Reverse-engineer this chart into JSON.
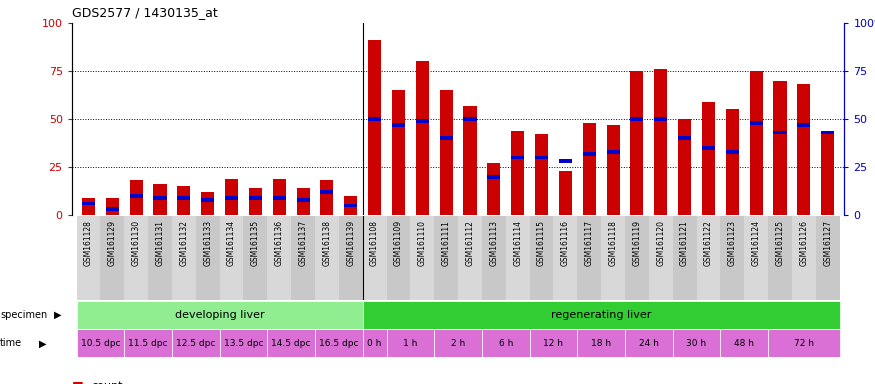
{
  "title": "GDS2577 / 1430135_at",
  "samples": [
    "GSM161128",
    "GSM161129",
    "GSM161130",
    "GSM161131",
    "GSM161132",
    "GSM161133",
    "GSM161134",
    "GSM161135",
    "GSM161136",
    "GSM161137",
    "GSM161138",
    "GSM161139",
    "GSM161108",
    "GSM161109",
    "GSM161110",
    "GSM161111",
    "GSM161112",
    "GSM161113",
    "GSM161114",
    "GSM161115",
    "GSM161116",
    "GSM161117",
    "GSM161118",
    "GSM161119",
    "GSM161120",
    "GSM161121",
    "GSM161122",
    "GSM161123",
    "GSM161124",
    "GSM161125",
    "GSM161126",
    "GSM161127"
  ],
  "count_values": [
    9,
    9,
    18,
    16,
    15,
    12,
    19,
    14,
    19,
    14,
    18,
    10,
    91,
    65,
    80,
    65,
    57,
    27,
    44,
    42,
    23,
    48,
    47,
    75,
    76,
    50,
    59,
    55,
    75,
    70,
    68,
    43
  ],
  "percentile_values": [
    6,
    3,
    10,
    9,
    9,
    8,
    9,
    9,
    9,
    8,
    12,
    5,
    50,
    47,
    49,
    40,
    50,
    20,
    30,
    30,
    28,
    32,
    33,
    50,
    50,
    40,
    35,
    33,
    48,
    43,
    47,
    43
  ],
  "specimen_groups": [
    {
      "label": "developing liver",
      "start": 0,
      "end": 12,
      "color": "#90ee90"
    },
    {
      "label": "regenerating liver",
      "start": 12,
      "end": 32,
      "color": "#32cd32"
    }
  ],
  "time_groups": [
    {
      "label": "10.5 dpc",
      "start": 0,
      "end": 2
    },
    {
      "label": "11.5 dpc",
      "start": 2,
      "end": 4
    },
    {
      "label": "12.5 dpc",
      "start": 4,
      "end": 6
    },
    {
      "label": "13.5 dpc",
      "start": 6,
      "end": 8
    },
    {
      "label": "14.5 dpc",
      "start": 8,
      "end": 10
    },
    {
      "label": "16.5 dpc",
      "start": 10,
      "end": 12
    },
    {
      "label": "0 h",
      "start": 12,
      "end": 13
    },
    {
      "label": "1 h",
      "start": 13,
      "end": 15
    },
    {
      "label": "2 h",
      "start": 15,
      "end": 17
    },
    {
      "label": "6 h",
      "start": 17,
      "end": 19
    },
    {
      "label": "12 h",
      "start": 19,
      "end": 21
    },
    {
      "label": "18 h",
      "start": 21,
      "end": 23
    },
    {
      "label": "24 h",
      "start": 23,
      "end": 25
    },
    {
      "label": "30 h",
      "start": 25,
      "end": 27
    },
    {
      "label": "48 h",
      "start": 27,
      "end": 29
    },
    {
      "label": "72 h",
      "start": 29,
      "end": 32
    }
  ],
  "bar_width": 0.55,
  "count_color": "#cc0000",
  "percentile_color": "#0000cc",
  "ylim": [
    0,
    100
  ],
  "yticks": [
    0,
    25,
    50,
    75,
    100
  ],
  "pct_bar_height": 2.0,
  "label_bg_color": "#d0d0d0",
  "specimen_colors": [
    "#90ee90",
    "#32cd32"
  ],
  "time_color": "#da70d6",
  "time_color_alt": "#ee82ee"
}
